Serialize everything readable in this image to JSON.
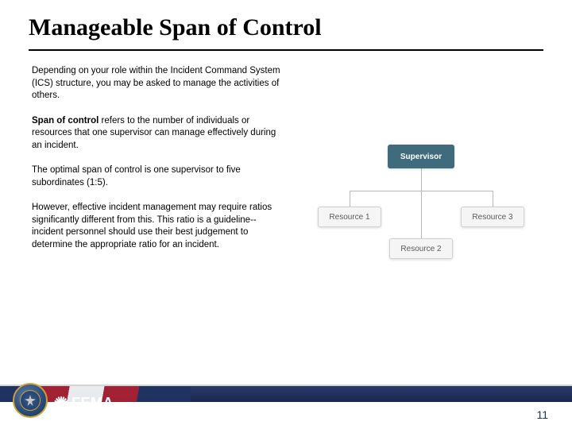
{
  "title": "Manageable Span of Control",
  "paragraphs": {
    "p1": "Depending on your role within the Incident Command System (ICS) structure, you may be asked to manage the activities of others.",
    "p2_bold": "Span of control",
    "p2_rest": " refers to the number of individuals or resources that one supervisor can manage effectively during an incident.",
    "p3": "The optimal span of control is one supervisor to five subordinates (1:5).",
    "p4": "However, effective incident management may require ratios significantly different from this. This ratio is a guideline--incident personnel should use their best judgement to determine the appropriate ratio for an incident."
  },
  "diagram": {
    "type": "tree",
    "supervisor": {
      "label": "Supervisor",
      "bg": "#3f6b7d",
      "fg": "#ffffff"
    },
    "resources": [
      {
        "label": "Resource 1"
      },
      {
        "label": "Resource 2"
      },
      {
        "label": "Resource 3"
      }
    ],
    "resource_bg": "#f5f5f5",
    "resource_fg": "#5a5a5a",
    "connector_color": "#b8b8b8"
  },
  "footer": {
    "agency_logo_text": "FEMA",
    "page_number": "11",
    "banner_colors": {
      "navy": "#203260",
      "red": "#b02030",
      "white": "#ffffff"
    }
  }
}
